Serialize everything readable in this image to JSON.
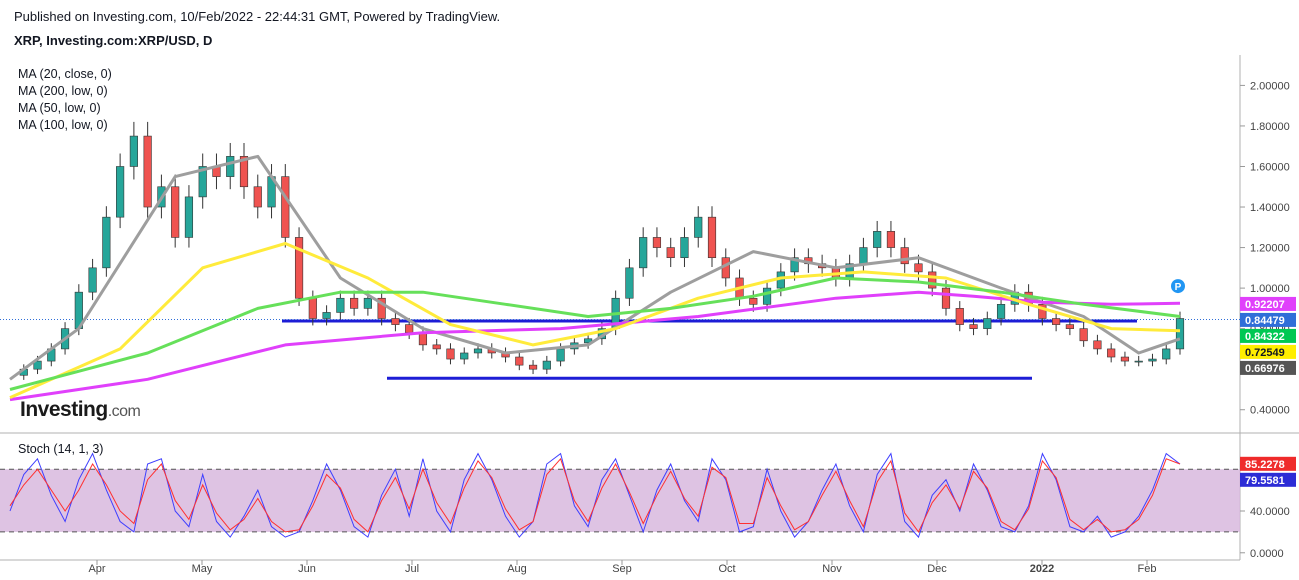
{
  "header": {
    "published": "Published on Investing.com, 10/Feb/2022 - 22:44:31 GMT, Powered by TradingView.",
    "symbol": "XRP, Investing.com:XRP/USD, D"
  },
  "indicators": [
    "MA (20, close, 0)",
    "MA (200, low, 0)",
    "MA (50, low, 0)",
    "MA (100, low, 0)"
  ],
  "stoch_label": "Stoch (14, 1, 3)",
  "logo": {
    "main": "Investing",
    "suffix": ".com"
  },
  "colors": {
    "up": "#26a69a",
    "down": "#ef5350",
    "candle_border": "#333333",
    "ma20": "#9e9e9e",
    "ma200": "#e040fb",
    "ma50": "#ffeb3b",
    "ma100": "#66e05a",
    "hline": "#1d1dd6",
    "stoch_k": "#3f3fff",
    "stoch_d": "#ff3030",
    "stoch_band": "#d8b9de"
  },
  "chart_data": [
    {
      "type": "candlestick",
      "title": "XRP, Investing.com:XRP/USD, D",
      "x_ticks": [
        "Apr",
        "May",
        "Jun",
        "Jul",
        "Aug",
        "Sep",
        "Oct",
        "Nov",
        "Dec",
        "2022",
        "Feb"
      ],
      "y_ticks": [
        "0.40000",
        "0.60000",
        "0.80000",
        "1.00000",
        "1.20000",
        "1.40000",
        "1.60000",
        "1.80000",
        "2.00000"
      ],
      "ylim": [
        0.3,
        2.15
      ],
      "price_series": [
        0.57,
        0.6,
        0.64,
        0.7,
        0.8,
        0.98,
        1.1,
        1.35,
        1.6,
        1.75,
        1.4,
        1.5,
        1.25,
        1.45,
        1.6,
        1.55,
        1.65,
        1.5,
        1.4,
        1.55,
        1.25,
        0.95,
        0.85,
        0.88,
        0.95,
        0.9,
        0.95,
        0.85,
        0.82,
        0.78,
        0.72,
        0.7,
        0.65,
        0.68,
        0.7,
        0.68,
        0.66,
        0.62,
        0.6,
        0.64,
        0.7,
        0.73,
        0.75,
        0.8,
        0.95,
        1.1,
        1.25,
        1.2,
        1.15,
        1.25,
        1.35,
        1.15,
        1.05,
        0.95,
        0.92,
        1.0,
        1.08,
        1.15,
        1.12,
        1.1,
        1.05,
        1.12,
        1.2,
        1.28,
        1.2,
        1.12,
        1.08,
        1.0,
        0.9,
        0.82,
        0.8,
        0.85,
        0.92,
        0.98,
        0.92,
        0.85,
        0.82,
        0.8,
        0.74,
        0.7,
        0.66,
        0.64,
        0.64,
        0.65,
        0.7,
        0.85
      ],
      "horizontal_levels": [
        {
          "value": 0.838,
          "from": "May",
          "to": "Feb"
        },
        {
          "value": 0.555,
          "from": "Jun",
          "to": "2022"
        }
      ],
      "series": [
        {
          "name": "MA (20, close, 0)",
          "color": "#9e9e9e",
          "points": [
            [
              0,
              0.55
            ],
            [
              5,
              0.8
            ],
            [
              12,
              1.55
            ],
            [
              18,
              1.65
            ],
            [
              24,
              1.05
            ],
            [
              30,
              0.8
            ],
            [
              36,
              0.68
            ],
            [
              42,
              0.72
            ],
            [
              48,
              0.98
            ],
            [
              54,
              1.18
            ],
            [
              60,
              1.1
            ],
            [
              66,
              1.15
            ],
            [
              72,
              1.0
            ],
            [
              78,
              0.86
            ],
            [
              82,
              0.68
            ],
            [
              85,
              0.75
            ]
          ]
        },
        {
          "name": "MA (200, low, 0)",
          "color": "#e040fb",
          "points": [
            [
              0,
              0.45
            ],
            [
              10,
              0.55
            ],
            [
              20,
              0.72
            ],
            [
              30,
              0.78
            ],
            [
              40,
              0.8
            ],
            [
              50,
              0.86
            ],
            [
              60,
              0.95
            ],
            [
              66,
              0.98
            ],
            [
              70,
              0.96
            ],
            [
              75,
              0.93
            ],
            [
              80,
              0.92
            ],
            [
              85,
              0.925
            ]
          ]
        },
        {
          "name": "MA (50, low, 0)",
          "color": "#ffeb3b",
          "points": [
            [
              0,
              0.46
            ],
            [
              8,
              0.7
            ],
            [
              14,
              1.1
            ],
            [
              20,
              1.22
            ],
            [
              26,
              1.05
            ],
            [
              32,
              0.82
            ],
            [
              38,
              0.72
            ],
            [
              44,
              0.8
            ],
            [
              50,
              0.95
            ],
            [
              56,
              1.05
            ],
            [
              62,
              1.08
            ],
            [
              68,
              1.05
            ],
            [
              74,
              0.92
            ],
            [
              80,
              0.8
            ],
            [
              85,
              0.79
            ]
          ]
        },
        {
          "name": "MA (100, low, 0)",
          "color": "#66e05a",
          "points": [
            [
              0,
              0.5
            ],
            [
              10,
              0.68
            ],
            [
              18,
              0.9
            ],
            [
              24,
              0.98
            ],
            [
              30,
              0.98
            ],
            [
              36,
              0.92
            ],
            [
              42,
              0.86
            ],
            [
              48,
              0.9
            ],
            [
              54,
              0.96
            ],
            [
              60,
              1.05
            ],
            [
              66,
              1.03
            ],
            [
              72,
              0.98
            ],
            [
              78,
              0.92
            ],
            [
              85,
              0.86
            ]
          ]
        }
      ],
      "last_values": [
        {
          "label": "0.92207",
          "bg": "#e040fb",
          "fg": "#ffffff",
          "value": 0.922
        },
        {
          "label": "0.84479",
          "bg": "#2f6ed8",
          "fg": "#ffffff",
          "value": 0.845
        },
        {
          "label": "0.84322",
          "bg": "#00c853",
          "fg": "#ffffff",
          "value": 0.843
        },
        {
          "label": "0.72549",
          "bg": "#ffee00",
          "fg": "#131722",
          "value": 0.725
        },
        {
          "label": "0.66976",
          "bg": "#555555",
          "fg": "#ffffff",
          "value": 0.67
        }
      ],
      "marker": "P"
    },
    {
      "type": "line",
      "title": "Stoch (14, 1, 3)",
      "y_ticks": [
        "0.0000",
        "40.0000"
      ],
      "ylim": [
        -5,
        108
      ],
      "band": [
        20,
        80
      ],
      "series": [
        {
          "name": "%K",
          "color": "#3f3fff",
          "values": [
            40,
            75,
            90,
            55,
            30,
            70,
            95,
            60,
            30,
            20,
            85,
            90,
            40,
            25,
            75,
            30,
            15,
            35,
            60,
            25,
            15,
            20,
            50,
            85,
            60,
            25,
            15,
            55,
            80,
            35,
            90,
            40,
            20,
            70,
            95,
            70,
            35,
            15,
            30,
            85,
            95,
            45,
            25,
            70,
            90,
            55,
            20,
            60,
            85,
            50,
            30,
            90,
            70,
            20,
            25,
            80,
            40,
            15,
            30,
            60,
            85,
            45,
            20,
            75,
            95,
            30,
            15,
            55,
            70,
            40,
            85,
            60,
            25,
            20,
            45,
            95,
            70,
            25,
            20,
            35,
            15,
            20,
            35,
            60,
            95,
            85
          ]
        },
        {
          "name": "%D",
          "color": "#ff3030",
          "values": [
            45,
            65,
            80,
            60,
            40,
            60,
            85,
            65,
            40,
            28,
            70,
            85,
            50,
            32,
            65,
            38,
            22,
            32,
            52,
            30,
            20,
            22,
            45,
            75,
            62,
            32,
            20,
            50,
            72,
            42,
            80,
            48,
            28,
            62,
            88,
            72,
            42,
            22,
            30,
            75,
            90,
            50,
            30,
            62,
            85,
            58,
            28,
            55,
            78,
            52,
            35,
            82,
            72,
            28,
            28,
            72,
            45,
            22,
            30,
            55,
            78,
            50,
            25,
            68,
            88,
            38,
            20,
            48,
            65,
            42,
            78,
            62,
            30,
            22,
            42,
            88,
            72,
            32,
            22,
            32,
            20,
            22,
            32,
            55,
            90,
            85
          ]
        }
      ],
      "last_values": [
        {
          "label": "85.2278",
          "bg": "#ef2b2b",
          "fg": "#ffffff",
          "value": 85.2
        },
        {
          "label": "79.5581",
          "bg": "#2c2cd6",
          "fg": "#ffffff",
          "value": 79.6
        }
      ]
    }
  ]
}
